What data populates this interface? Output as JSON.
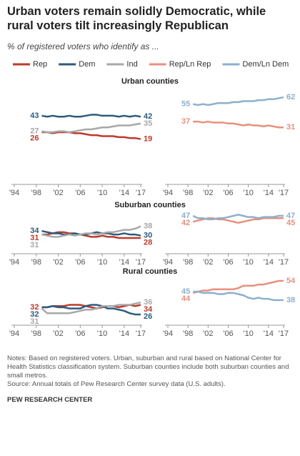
{
  "header": {
    "title": "Urban voters remain solidly Democratic, while rural voters tilt increasingly Republican",
    "subtitle": "% of registered voters who identify as ..."
  },
  "footer": {
    "notes": "Notes: Based on registered voters. Urban, suburban and rural based on National Center for Health Statistics classification system. Suburban counties include both suburban counties and small metros.",
    "source": "Source: Annual totals of Pew Research Center survey data (U.S. adults).",
    "credit": "PEW RESEARCH CENTER"
  },
  "chart_data": [
    {
      "type": "line",
      "title": "Urban counties",
      "x": [
        1999,
        2000,
        2001,
        2002,
        2003,
        2004,
        2005,
        2006,
        2007,
        2008,
        2009,
        2010,
        2011,
        2012,
        2013,
        2014,
        2015,
        2016,
        2017
      ],
      "xlim": [
        1994,
        2017
      ],
      "xticks": [
        {
          "value": 1994,
          "label": "'94"
        },
        {
          "value": 1998,
          "label": "'98"
        },
        {
          "value": 2002,
          "label": "'02"
        },
        {
          "value": 2006,
          "label": "'06"
        },
        {
          "value": 2010,
          "label": "'10"
        },
        {
          "value": 2014,
          "label": "'14"
        },
        {
          "value": 2017,
          "label": "'17"
        }
      ],
      "ylim": [
        15,
        65
      ],
      "series": [
        {
          "name": "Rep",
          "color": "#bd3a2b",
          "values": [
            26,
            26,
            25,
            26,
            26,
            26,
            25,
            25,
            24,
            23,
            23,
            22,
            22,
            22,
            21,
            21,
            20,
            20,
            19
          ]
        },
        {
          "name": "Dem",
          "color": "#2c5b7c",
          "values": [
            43,
            42,
            43,
            42,
            42,
            43,
            42,
            42,
            43,
            44,
            44,
            43,
            43,
            43,
            42,
            43,
            42,
            43,
            42
          ]
        },
        {
          "name": "Ind",
          "color": "#a8a8a8",
          "values": [
            27,
            26,
            26,
            27,
            27,
            26,
            27,
            28,
            29,
            29,
            30,
            31,
            31,
            32,
            33,
            33,
            33,
            34,
            35
          ]
        }
      ]
    },
    {
      "type": "line",
      "x": [
        1999,
        2000,
        2001,
        2002,
        2003,
        2004,
        2005,
        2006,
        2007,
        2008,
        2009,
        2010,
        2011,
        2012,
        2013,
        2014,
        2015,
        2016,
        2017
      ],
      "xlim": [
        1994,
        2017
      ],
      "xticks": [
        {
          "value": 1994,
          "label": "'94"
        },
        {
          "value": 1998,
          "label": "'98"
        },
        {
          "value": 2002,
          "label": "'02"
        },
        {
          "value": 2006,
          "label": "'06"
        },
        {
          "value": 2010,
          "label": "'10"
        },
        {
          "value": 2014,
          "label": "'14"
        },
        {
          "value": 2017,
          "label": "'17"
        }
      ],
      "ylim": [
        15,
        65
      ],
      "series": [
        {
          "name": "Rep/Ln Rep",
          "color": "#e8907d",
          "values": [
            37,
            37,
            36,
            37,
            36,
            36,
            36,
            35,
            35,
            34,
            33,
            34,
            33,
            33,
            32,
            33,
            32,
            31,
            31
          ]
        },
        {
          "name": "Dem/Ln Dem",
          "color": "#8db0cb",
          "values": [
            55,
            54,
            55,
            54,
            55,
            56,
            56,
            56,
            57,
            57,
            58,
            58,
            58,
            59,
            59,
            60,
            60,
            61,
            62
          ]
        }
      ]
    },
    {
      "type": "line",
      "title": "Suburban counties",
      "x": [
        1999,
        2000,
        2001,
        2002,
        2003,
        2004,
        2005,
        2006,
        2007,
        2008,
        2009,
        2010,
        2011,
        2012,
        2013,
        2014,
        2015,
        2016,
        2017
      ],
      "xlim": [
        1994,
        2017
      ],
      "xticks": [
        {
          "value": 1994,
          "label": "'94"
        },
        {
          "value": 1998,
          "label": "'98"
        },
        {
          "value": 2002,
          "label": "'02"
        },
        {
          "value": 2006,
          "label": "'06"
        },
        {
          "value": 2010,
          "label": "'10"
        },
        {
          "value": 2014,
          "label": "'14"
        },
        {
          "value": 2017,
          "label": "'17"
        }
      ],
      "ylim": [
        20,
        55
      ],
      "series": [
        {
          "name": "Rep",
          "color": "#bd3a2b",
          "values": [
            31,
            31,
            32,
            33,
            33,
            32,
            32,
            31,
            30,
            29,
            29,
            30,
            29,
            29,
            28,
            28,
            28,
            28,
            28
          ]
        },
        {
          "name": "Dem",
          "color": "#2c5b7c",
          "values": [
            34,
            33,
            32,
            32,
            31,
            31,
            32,
            31,
            31,
            32,
            33,
            32,
            32,
            31,
            31,
            32,
            31,
            31,
            30
          ]
        },
        {
          "name": "Ind",
          "color": "#a8a8a8",
          "values": [
            31,
            30,
            29,
            29,
            30,
            31,
            30,
            31,
            32,
            32,
            31,
            32,
            33,
            33,
            34,
            35,
            35,
            36,
            38
          ]
        }
      ]
    },
    {
      "type": "line",
      "x": [
        1999,
        2000,
        2001,
        2002,
        2003,
        2004,
        2005,
        2006,
        2007,
        2008,
        2009,
        2010,
        2011,
        2012,
        2013,
        2014,
        2015,
        2016,
        2017
      ],
      "xlim": [
        1994,
        2017
      ],
      "xticks": [
        {
          "value": 1994,
          "label": "'94"
        },
        {
          "value": 1998,
          "label": "'98"
        },
        {
          "value": 2002,
          "label": "'02"
        },
        {
          "value": 2006,
          "label": "'06"
        },
        {
          "value": 2010,
          "label": "'10"
        },
        {
          "value": 2014,
          "label": "'14"
        },
        {
          "value": 2017,
          "label": "'17"
        }
      ],
      "ylim": [
        20,
        55
      ],
      "series": [
        {
          "name": "Rep/Ln Rep",
          "color": "#e8907d",
          "values": [
            42,
            43,
            44,
            45,
            45,
            44,
            44,
            43,
            42,
            41,
            42,
            43,
            44,
            44,
            45,
            45,
            45,
            45,
            45
          ]
        },
        {
          "name": "Dem/Ln Dem",
          "color": "#8db0cb",
          "values": [
            47,
            45,
            45,
            44,
            44,
            45,
            45,
            46,
            47,
            48,
            47,
            46,
            46,
            45,
            46,
            46,
            46,
            47,
            47
          ]
        }
      ]
    },
    {
      "type": "line",
      "title": "Rural counties",
      "x": [
        1999,
        2000,
        2001,
        2002,
        2003,
        2004,
        2005,
        2006,
        2007,
        2008,
        2009,
        2010,
        2011,
        2012,
        2013,
        2014,
        2015,
        2016,
        2017
      ],
      "xlim": [
        1994,
        2017
      ],
      "xticks": [
        {
          "value": 1994,
          "label": "'94"
        },
        {
          "value": 1998,
          "label": "'98"
        },
        {
          "value": 2002,
          "label": "'02"
        },
        {
          "value": 2006,
          "label": "'06"
        },
        {
          "value": 2010,
          "label": "'10"
        },
        {
          "value": 2014,
          "label": "'14"
        },
        {
          "value": 2017,
          "label": "'17"
        }
      ],
      "ylim": [
        20,
        60
      ],
      "series": [
        {
          "name": "Rep",
          "color": "#bd3a2b",
          "values": [
            32,
            32,
            33,
            33,
            33,
            34,
            34,
            34,
            33,
            32,
            31,
            32,
            33,
            33,
            32,
            33,
            34,
            33,
            34
          ]
        },
        {
          "name": "Dem",
          "color": "#2c5b7c",
          "values": [
            32,
            32,
            33,
            32,
            32,
            31,
            31,
            31,
            33,
            34,
            34,
            33,
            31,
            31,
            30,
            29,
            27,
            26,
            26
          ]
        },
        {
          "name": "Ind",
          "color": "#a8a8a8",
          "values": [
            31,
            27,
            27,
            27,
            27,
            27,
            28,
            29,
            30,
            30,
            31,
            33,
            33,
            33,
            34,
            34,
            34,
            35,
            36
          ]
        }
      ]
    },
    {
      "type": "line",
      "x": [
        1999,
        2000,
        2001,
        2002,
        2003,
        2004,
        2005,
        2006,
        2007,
        2008,
        2009,
        2010,
        2011,
        2012,
        2013,
        2014,
        2015,
        2016,
        2017
      ],
      "xlim": [
        1994,
        2017
      ],
      "xticks": [
        {
          "value": 1994,
          "label": "'94"
        },
        {
          "value": 1998,
          "label": "'98"
        },
        {
          "value": 2002,
          "label": "'02"
        },
        {
          "value": 2006,
          "label": "'06"
        },
        {
          "value": 2010,
          "label": "'10"
        },
        {
          "value": 2014,
          "label": "'14"
        },
        {
          "value": 2017,
          "label": "'17"
        }
      ],
      "ylim": [
        20,
        60
      ],
      "series": [
        {
          "name": "Rep/Ln Rep",
          "color": "#e8907d",
          "values": [
            44,
            45,
            46,
            46,
            47,
            47,
            47,
            47,
            47,
            48,
            50,
            50,
            50,
            51,
            51,
            52,
            53,
            54,
            54
          ]
        },
        {
          "name": "Dem/Ln Dem",
          "color": "#8db0cb",
          "values": [
            45,
            45,
            44,
            44,
            44,
            43,
            43,
            44,
            44,
            43,
            42,
            40,
            39,
            40,
            39,
            39,
            38,
            38,
            38
          ]
        }
      ]
    }
  ]
}
